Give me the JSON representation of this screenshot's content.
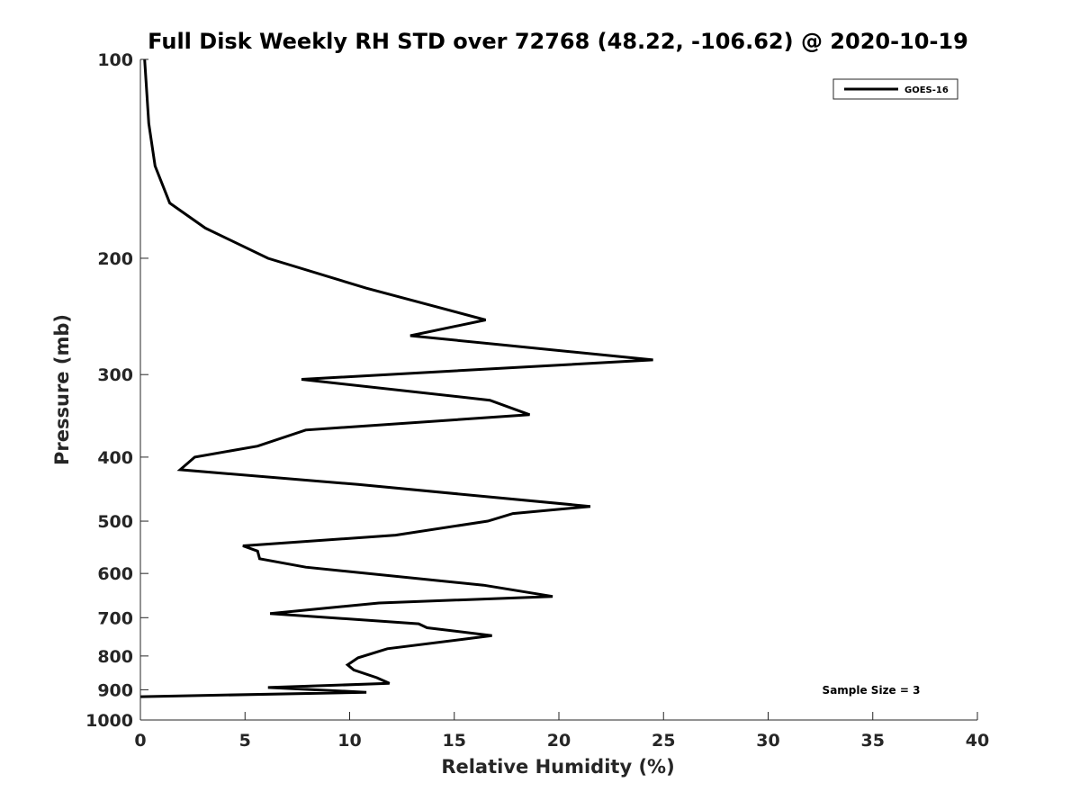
{
  "chart_data": {
    "type": "line",
    "title": "Full Disk Weekly RH STD over 72768 (48.22, -106.62) @ 2020-10-19",
    "xlabel": "Relative Humidity (%)",
    "ylabel": "Pressure (mb)",
    "xlim": [
      0,
      40
    ],
    "ylim": [
      100,
      1000
    ],
    "y_scale": "log",
    "y_reversed": true,
    "x_ticks": [
      0,
      5,
      10,
      15,
      20,
      25,
      30,
      35,
      40
    ],
    "y_ticks": [
      100,
      200,
      300,
      400,
      500,
      600,
      700,
      800,
      900,
      1000
    ],
    "grid": false,
    "legend_position": "top-right",
    "annotation": "Sample Size = 3",
    "series": [
      {
        "name": "GOES-16",
        "color": "#000000",
        "x": [
          0.2,
          0.4,
          0.7,
          1.4,
          3.1,
          6.1,
          10.8,
          16.5,
          12.9,
          24.5,
          7.7,
          16.7,
          18.6,
          7.9,
          5.6,
          2.6,
          1.9,
          10.4,
          21.5,
          17.8,
          16.6,
          12.2,
          4.9,
          5.6,
          5.7,
          7.9,
          16.4,
          19.7,
          11.4,
          6.2,
          13.3,
          13.7,
          16.8,
          15.4,
          11.8,
          10.4,
          9.9,
          10.2,
          11.3,
          11.9,
          6.1,
          10.8,
          0.0
        ],
        "y": [
          100,
          125,
          145,
          165,
          180,
          200,
          222,
          248,
          262,
          285,
          305,
          328,
          345,
          364,
          385,
          400,
          418,
          440,
          475,
          487,
          500,
          525,
          545,
          555,
          570,
          587,
          625,
          650,
          665,
          690,
          715,
          725,
          745,
          755,
          780,
          805,
          825,
          840,
          863,
          880,
          893,
          908,
          922
        ]
      }
    ]
  }
}
